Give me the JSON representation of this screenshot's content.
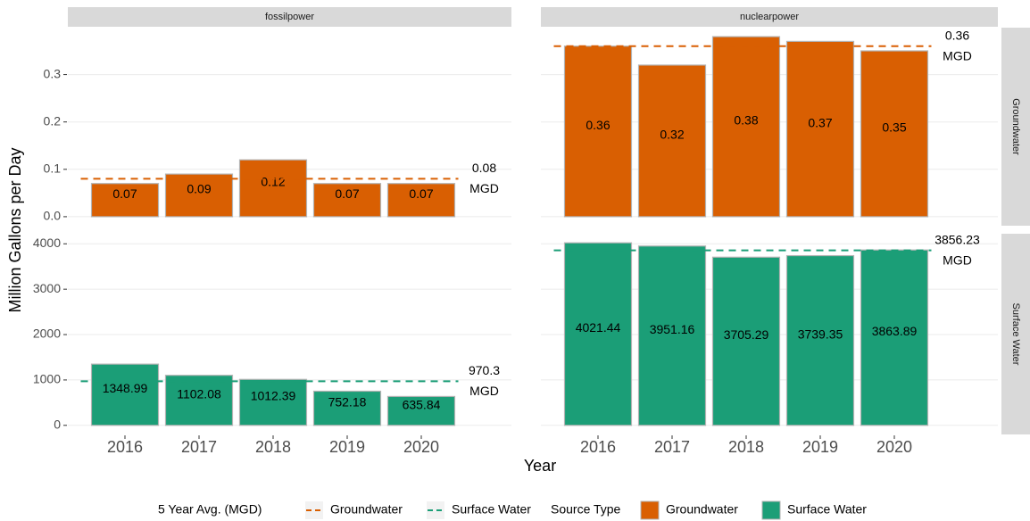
{
  "chart_data": {
    "type": "bar",
    "xlabel": "Year",
    "ylabel": "Million Gallons per Day",
    "categories": [
      "2016",
      "2017",
      "2018",
      "2019",
      "2020"
    ],
    "columns": [
      "fossilpower",
      "nuclearpower"
    ],
    "series": [
      {
        "name": "Groundwater",
        "color": "#d95f02"
      },
      {
        "name": "Surface Water",
        "color": "#1b9e77"
      }
    ],
    "legend": {
      "avg_title": "5 Year Avg. (MGD)",
      "fill_title": "Source Type"
    },
    "grid": true,
    "rows": [
      {
        "ylim": [
          -0.019,
          0.399
        ],
        "yticks": [
          {
            "value": 0,
            "label": "0.0"
          },
          0.1,
          0.2,
          0.3
        ],
        "panels": [
          {
            "values": [
              0.07,
              0.09,
              0.12,
              0.07,
              0.07
            ],
            "average": 0.08,
            "average_label": [
              "0.08",
              "MGD"
            ]
          },
          {
            "values": [
              0.36,
              0.32,
              0.38,
              0.37,
              0.35
            ],
            "average": 0.36,
            "average_label": [
              "0.36",
              "MGD"
            ]
          }
        ]
      },
      {
        "ylim": [
          -201,
          4222
        ],
        "yticks": [
          0,
          1000,
          2000,
          3000,
          4000
        ],
        "panels": [
          {
            "values": [
              1348.99,
              1102.08,
              1012.39,
              752.18,
              635.84
            ],
            "average": 970.3,
            "average_label": [
              "970.3",
              "MGD"
            ]
          },
          {
            "values": [
              4021.44,
              3951.16,
              3705.29,
              3739.35,
              3863.89
            ],
            "average": 3856.23,
            "average_label": [
              "3856.23",
              "MGD"
            ]
          }
        ]
      }
    ]
  }
}
